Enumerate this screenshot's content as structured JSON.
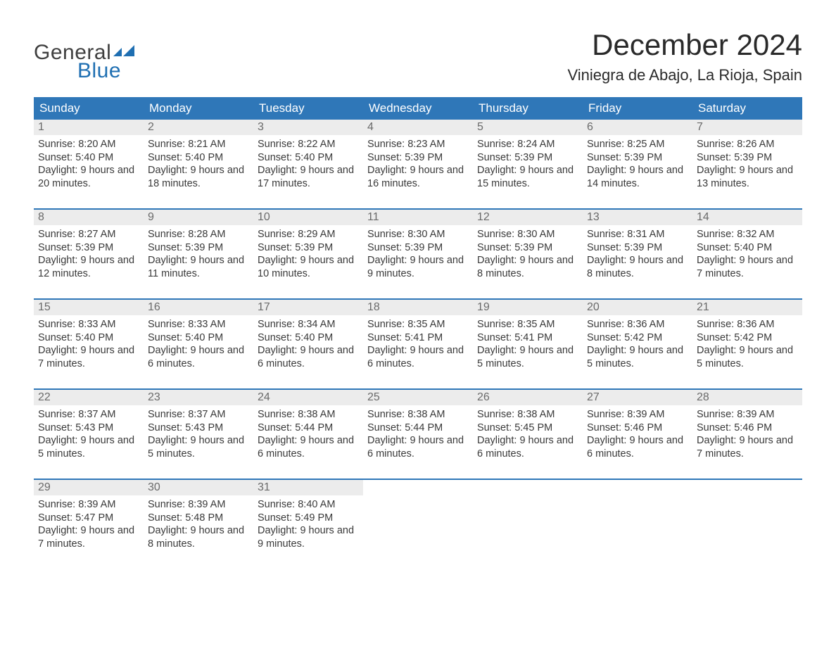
{
  "logo": {
    "text1": "General",
    "text2": "Blue",
    "color_general": "#404040",
    "color_blue": "#1f6fb2",
    "flag_color": "#1f6fb2"
  },
  "title": "December 2024",
  "location": "Viniegra de Abajo, La Rioja, Spain",
  "colors": {
    "header_bg": "#2f77b8",
    "header_text": "#ffffff",
    "week_border": "#2f77b8",
    "daynum_bg": "#ececec",
    "daynum_text": "#6a6a6a",
    "body_text": "#3a3a3a",
    "page_bg": "#ffffff"
  },
  "fonts": {
    "title_size": 42,
    "location_size": 22,
    "weekday_size": 17,
    "daynum_size": 16,
    "body_size": 14.5
  },
  "weekdays": [
    "Sunday",
    "Monday",
    "Tuesday",
    "Wednesday",
    "Thursday",
    "Friday",
    "Saturday"
  ],
  "days": [
    {
      "n": "1",
      "sunrise": "8:20 AM",
      "sunset": "5:40 PM",
      "daylight": "9 hours and 20 minutes."
    },
    {
      "n": "2",
      "sunrise": "8:21 AM",
      "sunset": "5:40 PM",
      "daylight": "9 hours and 18 minutes."
    },
    {
      "n": "3",
      "sunrise": "8:22 AM",
      "sunset": "5:40 PM",
      "daylight": "9 hours and 17 minutes."
    },
    {
      "n": "4",
      "sunrise": "8:23 AM",
      "sunset": "5:39 PM",
      "daylight": "9 hours and 16 minutes."
    },
    {
      "n": "5",
      "sunrise": "8:24 AM",
      "sunset": "5:39 PM",
      "daylight": "9 hours and 15 minutes."
    },
    {
      "n": "6",
      "sunrise": "8:25 AM",
      "sunset": "5:39 PM",
      "daylight": "9 hours and 14 minutes."
    },
    {
      "n": "7",
      "sunrise": "8:26 AM",
      "sunset": "5:39 PM",
      "daylight": "9 hours and 13 minutes."
    },
    {
      "n": "8",
      "sunrise": "8:27 AM",
      "sunset": "5:39 PM",
      "daylight": "9 hours and 12 minutes."
    },
    {
      "n": "9",
      "sunrise": "8:28 AM",
      "sunset": "5:39 PM",
      "daylight": "9 hours and 11 minutes."
    },
    {
      "n": "10",
      "sunrise": "8:29 AM",
      "sunset": "5:39 PM",
      "daylight": "9 hours and 10 minutes."
    },
    {
      "n": "11",
      "sunrise": "8:30 AM",
      "sunset": "5:39 PM",
      "daylight": "9 hours and 9 minutes."
    },
    {
      "n": "12",
      "sunrise": "8:30 AM",
      "sunset": "5:39 PM",
      "daylight": "9 hours and 8 minutes."
    },
    {
      "n": "13",
      "sunrise": "8:31 AM",
      "sunset": "5:39 PM",
      "daylight": "9 hours and 8 minutes."
    },
    {
      "n": "14",
      "sunrise": "8:32 AM",
      "sunset": "5:40 PM",
      "daylight": "9 hours and 7 minutes."
    },
    {
      "n": "15",
      "sunrise": "8:33 AM",
      "sunset": "5:40 PM",
      "daylight": "9 hours and 7 minutes."
    },
    {
      "n": "16",
      "sunrise": "8:33 AM",
      "sunset": "5:40 PM",
      "daylight": "9 hours and 6 minutes."
    },
    {
      "n": "17",
      "sunrise": "8:34 AM",
      "sunset": "5:40 PM",
      "daylight": "9 hours and 6 minutes."
    },
    {
      "n": "18",
      "sunrise": "8:35 AM",
      "sunset": "5:41 PM",
      "daylight": "9 hours and 6 minutes."
    },
    {
      "n": "19",
      "sunrise": "8:35 AM",
      "sunset": "5:41 PM",
      "daylight": "9 hours and 5 minutes."
    },
    {
      "n": "20",
      "sunrise": "8:36 AM",
      "sunset": "5:42 PM",
      "daylight": "9 hours and 5 minutes."
    },
    {
      "n": "21",
      "sunrise": "8:36 AM",
      "sunset": "5:42 PM",
      "daylight": "9 hours and 5 minutes."
    },
    {
      "n": "22",
      "sunrise": "8:37 AM",
      "sunset": "5:43 PM",
      "daylight": "9 hours and 5 minutes."
    },
    {
      "n": "23",
      "sunrise": "8:37 AM",
      "sunset": "5:43 PM",
      "daylight": "9 hours and 5 minutes."
    },
    {
      "n": "24",
      "sunrise": "8:38 AM",
      "sunset": "5:44 PM",
      "daylight": "9 hours and 6 minutes."
    },
    {
      "n": "25",
      "sunrise": "8:38 AM",
      "sunset": "5:44 PM",
      "daylight": "9 hours and 6 minutes."
    },
    {
      "n": "26",
      "sunrise": "8:38 AM",
      "sunset": "5:45 PM",
      "daylight": "9 hours and 6 minutes."
    },
    {
      "n": "27",
      "sunrise": "8:39 AM",
      "sunset": "5:46 PM",
      "daylight": "9 hours and 6 minutes."
    },
    {
      "n": "28",
      "sunrise": "8:39 AM",
      "sunset": "5:46 PM",
      "daylight": "9 hours and 7 minutes."
    },
    {
      "n": "29",
      "sunrise": "8:39 AM",
      "sunset": "5:47 PM",
      "daylight": "9 hours and 7 minutes."
    },
    {
      "n": "30",
      "sunrise": "8:39 AM",
      "sunset": "5:48 PM",
      "daylight": "9 hours and 8 minutes."
    },
    {
      "n": "31",
      "sunrise": "8:40 AM",
      "sunset": "5:49 PM",
      "daylight": "9 hours and 9 minutes."
    }
  ],
  "labels": {
    "sunrise": "Sunrise: ",
    "sunset": "Sunset: ",
    "daylight": "Daylight: "
  },
  "layout": {
    "start_weekday": 0,
    "total_cells": 35,
    "columns": 7
  }
}
